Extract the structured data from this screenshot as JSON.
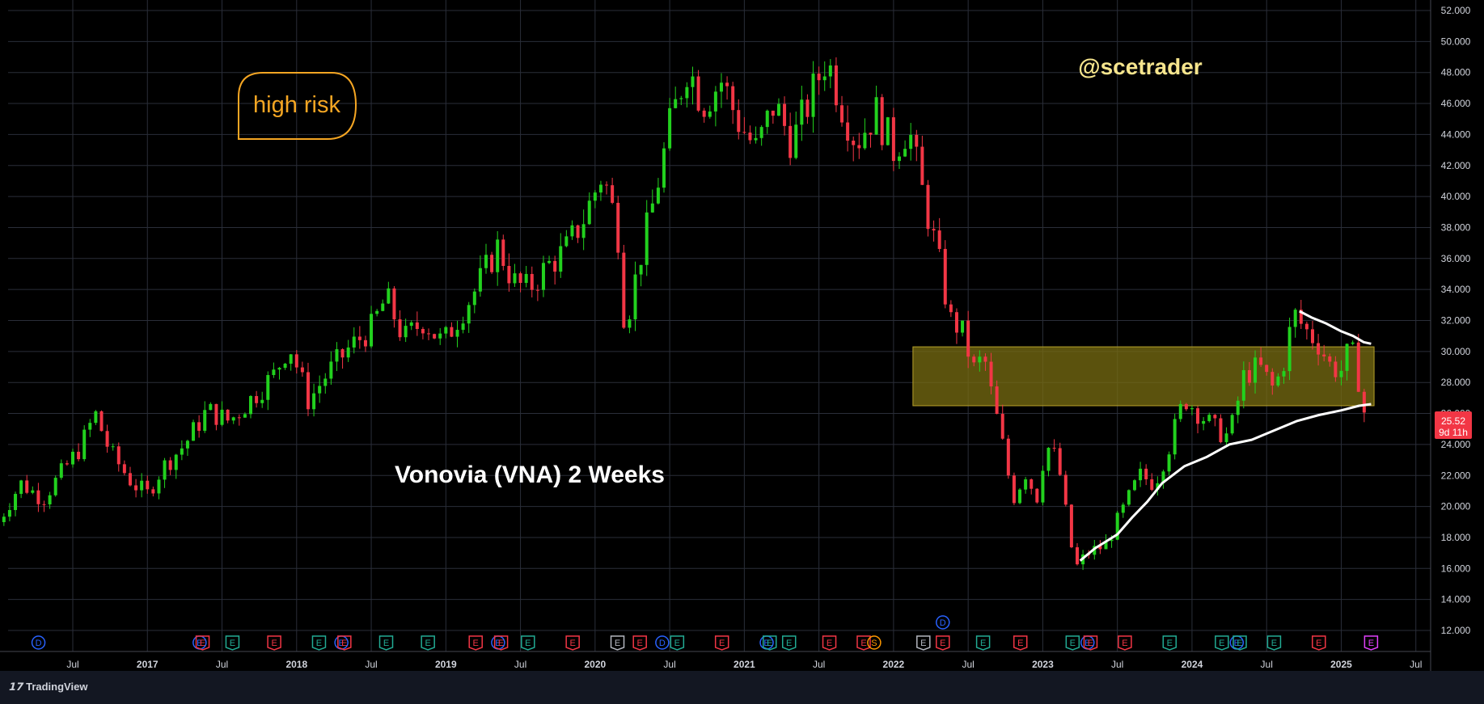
{
  "chart_data": {
    "type": "candlestick",
    "title": "Vonovia (VNA) 2 Weeks",
    "watermark": "@scetrader",
    "annotation": "high risk",
    "y_range": [
      11,
      52.8
    ],
    "y_ticks": [
      "12.000",
      "14.000",
      "16.000",
      "18.000",
      "20.000",
      "22.000",
      "24.000",
      "26.000",
      "28.000",
      "30.000",
      "32.000",
      "34.000",
      "36.000",
      "38.000",
      "40.000",
      "42.000",
      "44.000",
      "46.000",
      "48.000",
      "50.000",
      "52.000"
    ],
    "x_ticks": [
      "Jul",
      "2017",
      "Jul",
      "2018",
      "Jul",
      "2019",
      "Jul",
      "2020",
      "Jul",
      "2021",
      "Jul",
      "2022",
      "Jul",
      "2023",
      "Jul",
      "2024",
      "Jul",
      "2025",
      "Jul"
    ],
    "x_tick_dates": [
      2016.5,
      2017,
      2017.5,
      2018,
      2018.5,
      2019,
      2019.5,
      2020,
      2020.5,
      2021,
      2021.5,
      2022,
      2022.5,
      2023,
      2023.5,
      2024,
      2024.5,
      2025,
      2025.5
    ],
    "x_range": [
      2016.0,
      2026.0
    ],
    "last_price": "25.52",
    "countdown": "9d 11h",
    "colors": {
      "up": "#22d11e",
      "down": "#f23645",
      "zone": "#7a6d12",
      "ma": "#ffffff",
      "watermark": "#f6e58d",
      "annotation": "#f5a623",
      "event_earn_green": "#22ab94",
      "event_earn_red": "#f23645",
      "event_div": "#2962ff"
    },
    "resistance_zone": {
      "from_date": 2022.13,
      "to_date": 2025.22,
      "low": 26.5,
      "high": 30.3
    },
    "price_path": [
      [
        2016.0,
        19.0
      ],
      [
        2016.15,
        21.5
      ],
      [
        2016.3,
        20.5
      ],
      [
        2016.45,
        22.5
      ],
      [
        2016.55,
        23.8
      ],
      [
        2016.65,
        26.0
      ],
      [
        2016.75,
        23.5
      ],
      [
        2016.9,
        21.5
      ],
      [
        2017.0,
        20.8
      ],
      [
        2017.1,
        22.5
      ],
      [
        2017.25,
        24.0
      ],
      [
        2017.4,
        26.2
      ],
      [
        2017.55,
        25.5
      ],
      [
        2017.7,
        27.0
      ],
      [
        2017.85,
        28.5
      ],
      [
        2017.95,
        30.5
      ],
      [
        2018.08,
        26.8
      ],
      [
        2018.2,
        28.5
      ],
      [
        2018.35,
        30.2
      ],
      [
        2018.5,
        31.5
      ],
      [
        2018.6,
        33.5
      ],
      [
        2018.72,
        30.8
      ],
      [
        2018.85,
        32.0
      ],
      [
        2018.98,
        30.5
      ],
      [
        2019.1,
        32.5
      ],
      [
        2019.2,
        34.0
      ],
      [
        2019.35,
        36.8
      ],
      [
        2019.45,
        34.5
      ],
      [
        2019.55,
        34.0
      ],
      [
        2019.68,
        35.5
      ],
      [
        2019.8,
        36.5
      ],
      [
        2019.92,
        38.5
      ],
      [
        2020.05,
        41.5
      ],
      [
        2020.15,
        38.0
      ],
      [
        2020.2,
        31.5
      ],
      [
        2020.3,
        36.0
      ],
      [
        2020.4,
        40.0
      ],
      [
        2020.5,
        44.5
      ],
      [
        2020.62,
        48.5
      ],
      [
        2020.72,
        46.0
      ],
      [
        2020.85,
        47.5
      ],
      [
        2020.95,
        45.0
      ],
      [
        2021.08,
        43.0
      ],
      [
        2021.2,
        46.0
      ],
      [
        2021.32,
        43.5
      ],
      [
        2021.45,
        46.5
      ],
      [
        2021.55,
        49.0
      ],
      [
        2021.65,
        46.0
      ],
      [
        2021.75,
        43.5
      ],
      [
        2021.88,
        45.5
      ],
      [
        2022.0,
        43.0
      ],
      [
        2022.1,
        44.5
      ],
      [
        2022.2,
        40.0
      ],
      [
        2022.3,
        36.0
      ],
      [
        2022.38,
        32.0
      ],
      [
        2022.45,
        31.5
      ],
      [
        2022.55,
        28.5
      ],
      [
        2022.6,
        30.0
      ],
      [
        2022.65,
        27.5
      ],
      [
        2022.72,
        24.5
      ],
      [
        2022.8,
        20.5
      ],
      [
        2022.9,
        22.5
      ],
      [
        2022.95,
        20.0
      ],
      [
        2023.02,
        24.0
      ],
      [
        2023.1,
        23.0
      ],
      [
        2023.18,
        18.0
      ],
      [
        2023.22,
        16.0
      ],
      [
        2023.3,
        17.0
      ],
      [
        2023.42,
        17.5
      ],
      [
        2023.55,
        20.0
      ],
      [
        2023.65,
        22.0
      ],
      [
        2023.75,
        21.5
      ],
      [
        2023.85,
        24.0
      ],
      [
        2023.95,
        27.0
      ],
      [
        2024.05,
        26.0
      ],
      [
        2024.15,
        25.0
      ],
      [
        2024.25,
        24.5
      ],
      [
        2024.35,
        28.5
      ],
      [
        2024.45,
        29.0
      ],
      [
        2024.55,
        27.5
      ],
      [
        2024.62,
        29.5
      ],
      [
        2024.68,
        32.5
      ],
      [
        2024.75,
        31.5
      ],
      [
        2024.85,
        30.5
      ],
      [
        2024.93,
        29.0
      ],
      [
        2025.0,
        28.8
      ],
      [
        2025.05,
        30.0
      ],
      [
        2025.1,
        29.5
      ],
      [
        2025.13,
        27.0
      ],
      [
        2025.17,
        25.5
      ]
    ],
    "moving_averages": [
      {
        "points": [
          [
            2023.25,
            16.5
          ],
          [
            2023.35,
            17.3
          ],
          [
            2023.5,
            18.2
          ],
          [
            2023.6,
            19.3
          ],
          [
            2023.7,
            20.3
          ],
          [
            2023.8,
            21.5
          ],
          [
            2023.95,
            22.6
          ],
          [
            2024.1,
            23.2
          ],
          [
            2024.25,
            24.0
          ],
          [
            2024.4,
            24.3
          ],
          [
            2024.55,
            24.9
          ],
          [
            2024.7,
            25.5
          ],
          [
            2024.85,
            25.9
          ],
          [
            2025.0,
            26.2
          ],
          [
            2025.12,
            26.5
          ],
          [
            2025.2,
            26.6
          ]
        ]
      },
      {
        "points": [
          [
            2024.72,
            32.6
          ],
          [
            2024.8,
            32.2
          ],
          [
            2024.9,
            31.8
          ],
          [
            2025.0,
            31.3
          ],
          [
            2025.08,
            31.0
          ],
          [
            2025.15,
            30.6
          ],
          [
            2025.2,
            30.5
          ]
        ]
      }
    ],
    "events": [
      {
        "date": 2016.27,
        "label": "D",
        "kind": "div"
      },
      {
        "date": 2017.35,
        "label": "E",
        "kind": "div2"
      },
      {
        "date": 2017.37,
        "label": "E",
        "kind": "earn_red"
      },
      {
        "date": 2017.57,
        "label": "E",
        "kind": "earn_green"
      },
      {
        "date": 2017.85,
        "label": "E",
        "kind": "earn_red"
      },
      {
        "date": 2018.15,
        "label": "E",
        "kind": "earn_green"
      },
      {
        "date": 2018.3,
        "label": "E",
        "kind": "div2"
      },
      {
        "date": 2018.32,
        "label": "E",
        "kind": "earn_red"
      },
      {
        "date": 2018.6,
        "label": "E",
        "kind": "earn_green"
      },
      {
        "date": 2018.88,
        "label": "E",
        "kind": "earn_green"
      },
      {
        "date": 2019.2,
        "label": "E",
        "kind": "earn_red"
      },
      {
        "date": 2019.35,
        "label": "E",
        "kind": "div2"
      },
      {
        "date": 2019.37,
        "label": "E",
        "kind": "earn_red"
      },
      {
        "date": 2019.55,
        "label": "E",
        "kind": "earn_green"
      },
      {
        "date": 2019.85,
        "label": "E",
        "kind": "earn_red"
      },
      {
        "date": 2020.15,
        "label": "E",
        "kind": "earn_gray"
      },
      {
        "date": 2020.3,
        "label": "E",
        "kind": "earn_red"
      },
      {
        "date": 2020.45,
        "label": "D",
        "kind": "div"
      },
      {
        "date": 2020.55,
        "label": "E",
        "kind": "earn_green"
      },
      {
        "date": 2020.85,
        "label": "E",
        "kind": "earn_red"
      },
      {
        "date": 2021.15,
        "label": "E",
        "kind": "div2"
      },
      {
        "date": 2021.17,
        "label": "E",
        "kind": "earn_green"
      },
      {
        "date": 2021.3,
        "label": "E",
        "kind": "earn_green"
      },
      {
        "date": 2021.57,
        "label": "E",
        "kind": "earn_red"
      },
      {
        "date": 2021.8,
        "label": "E",
        "kind": "earn_red"
      },
      {
        "date": 2021.87,
        "label": "S",
        "kind": "split"
      },
      {
        "date": 2022.2,
        "label": "E",
        "kind": "earn_gray"
      },
      {
        "date": 2022.33,
        "label": "E",
        "kind": "earn_red"
      },
      {
        "date": 2022.33,
        "label": "D",
        "kind": "div_upper"
      },
      {
        "date": 2022.6,
        "label": "E",
        "kind": "earn_green"
      },
      {
        "date": 2022.85,
        "label": "E",
        "kind": "earn_red"
      },
      {
        "date": 2023.2,
        "label": "E",
        "kind": "earn_green"
      },
      {
        "date": 2023.3,
        "label": "E",
        "kind": "div2"
      },
      {
        "date": 2023.32,
        "label": "E",
        "kind": "earn_red"
      },
      {
        "date": 2023.55,
        "label": "E",
        "kind": "earn_red"
      },
      {
        "date": 2023.85,
        "label": "E",
        "kind": "earn_green"
      },
      {
        "date": 2024.2,
        "label": "E",
        "kind": "earn_green"
      },
      {
        "date": 2024.3,
        "label": "E",
        "kind": "div2"
      },
      {
        "date": 2024.32,
        "label": "E",
        "kind": "earn_green"
      },
      {
        "date": 2024.55,
        "label": "E",
        "kind": "earn_green"
      },
      {
        "date": 2024.85,
        "label": "E",
        "kind": "earn_red"
      },
      {
        "date": 2025.2,
        "label": "E",
        "kind": "earn_purple"
      }
    ]
  },
  "footer": {
    "brand": "TradingView"
  }
}
